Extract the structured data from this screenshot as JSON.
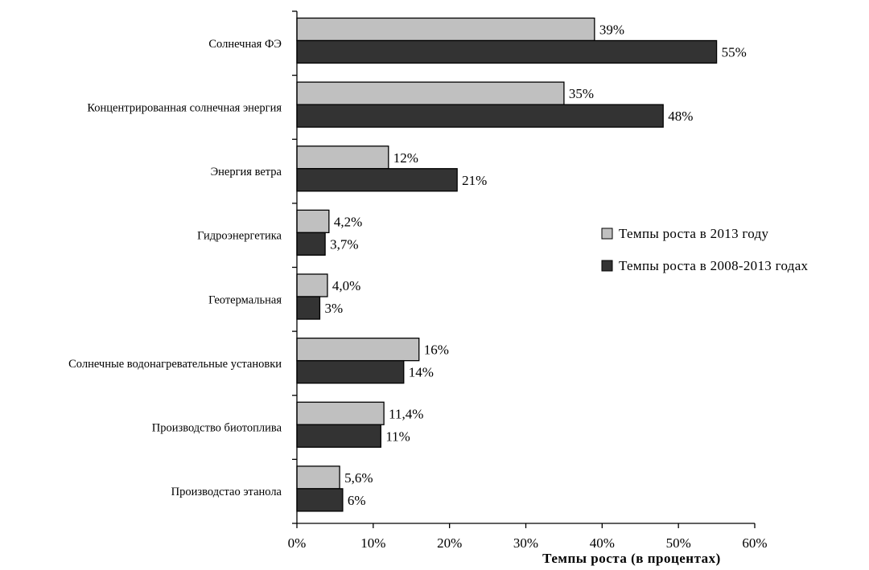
{
  "chart_data": {
    "type": "bar",
    "orientation": "horizontal",
    "categories": [
      "Солнечная ФЭ",
      "Концентрированная солнечная энергия",
      "Энергия ветра",
      "Гидроэнергетика",
      "Геотермальная",
      "Солнечные водонагревательные установки",
      "Производство биотоплива",
      "Производстао этанола"
    ],
    "series": [
      {
        "name": "Темпы роста в 2013 году",
        "color": "#c0c0c0",
        "values": [
          39,
          35,
          12,
          4.2,
          4.0,
          16,
          11.4,
          5.6
        ],
        "labels": [
          "39%",
          "35%",
          "12%",
          "4,2%",
          "4,0%",
          "16%",
          "11,4%",
          "5,6%"
        ]
      },
      {
        "name": "Темпы роста в 2008-2013 годах",
        "color": "#333333",
        "values": [
          55,
          48,
          21,
          3.7,
          3,
          14,
          11,
          6
        ],
        "labels": [
          "55%",
          "48%",
          "21%",
          "3,7%",
          "3%",
          "14%",
          "11%",
          "6%"
        ]
      }
    ],
    "xlabel": "Темпы роста (в процентах)",
    "xlim": [
      0,
      60
    ],
    "xticks": [
      0,
      10,
      20,
      30,
      40,
      50,
      60
    ],
    "xtick_labels": [
      "0%",
      "10%",
      "20%",
      "30%",
      "40%",
      "50%",
      "60%"
    ],
    "grid": false,
    "legend_position": "right"
  }
}
